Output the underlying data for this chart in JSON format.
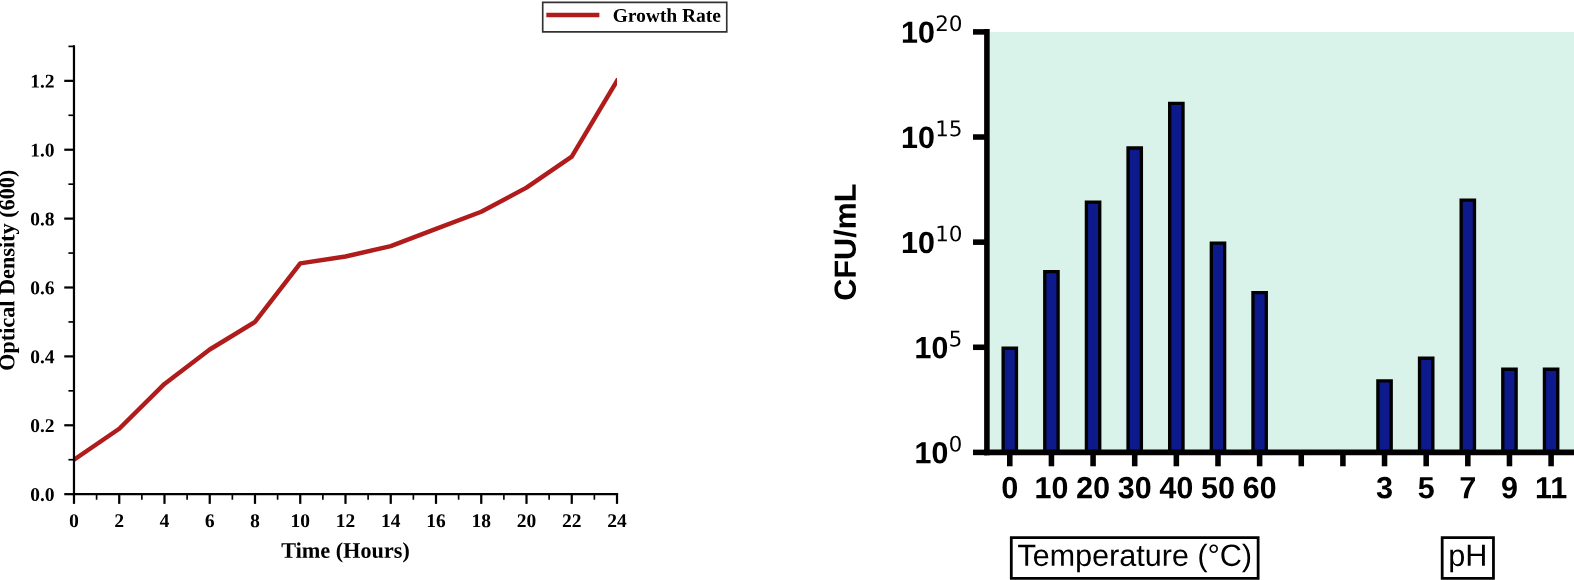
{
  "chart_data": [
    {
      "type": "line",
      "xlabel": "Time (Hours)",
      "ylabel": "Optical Density (600)",
      "x": [
        0,
        2,
        4,
        6,
        8,
        10,
        12,
        14,
        16,
        18,
        20,
        22,
        24
      ],
      "series": [
        {
          "name": "Growth Rate",
          "color": "#b01c1c",
          "values": [
            0.1,
            0.19,
            0.32,
            0.42,
            0.5,
            0.67,
            0.69,
            0.72,
            0.77,
            0.82,
            0.89,
            0.98,
            1.2
          ]
        }
      ],
      "xlim": [
        0,
        24
      ],
      "xticks": [
        0,
        2,
        4,
        6,
        8,
        10,
        12,
        14,
        16,
        18,
        20,
        22,
        24
      ],
      "ylim": [
        0,
        1.3
      ],
      "yticks": [
        {
          "value": 0,
          "label": "0.0"
        },
        0.2,
        0.4,
        0.6,
        0.8,
        {
          "value": 1,
          "label": "1.0"
        },
        1.2
      ],
      "grid": false,
      "legend": "top right",
      "marker": "none",
      "line_style": "solid"
    },
    {
      "type": "bar",
      "ylabel": "CFU/mL",
      "categories": [
        "0",
        "10",
        "20",
        "30",
        "40",
        "50",
        "60",
        null,
        null,
        "3",
        "5",
        "7",
        "9",
        "11"
      ],
      "series": [
        {
          "color": "#0d1a8c",
          "values": [
            90000,
            400000000,
            800000000000,
            300000000000000,
            40000000000000000,
            9000000000,
            40000000,
            null,
            null,
            2500,
            30000,
            1000000000000,
            9000,
            9000
          ]
        }
      ],
      "log": "y",
      "ylim": [
        1,
        1e+20
      ],
      "yticks": [
        {
          "value": 1,
          "label": "10$^{0}$"
        },
        {
          "value": 100000,
          "label": "10$^{5}$"
        },
        {
          "value": 10000000000,
          "label": "10$^{10}$"
        },
        {
          "value": 1000000000000000,
          "label": "10$^{15}$"
        },
        {
          "value": 1e+20,
          "label": "10$^{20}$"
        }
      ],
      "annotations": [
        {
          "text": "Temperature (°C)",
          "x": "30"
        },
        {
          "text": "pH",
          "x": "7"
        }
      ],
      "grid": false,
      "legend": false
    }
  ]
}
